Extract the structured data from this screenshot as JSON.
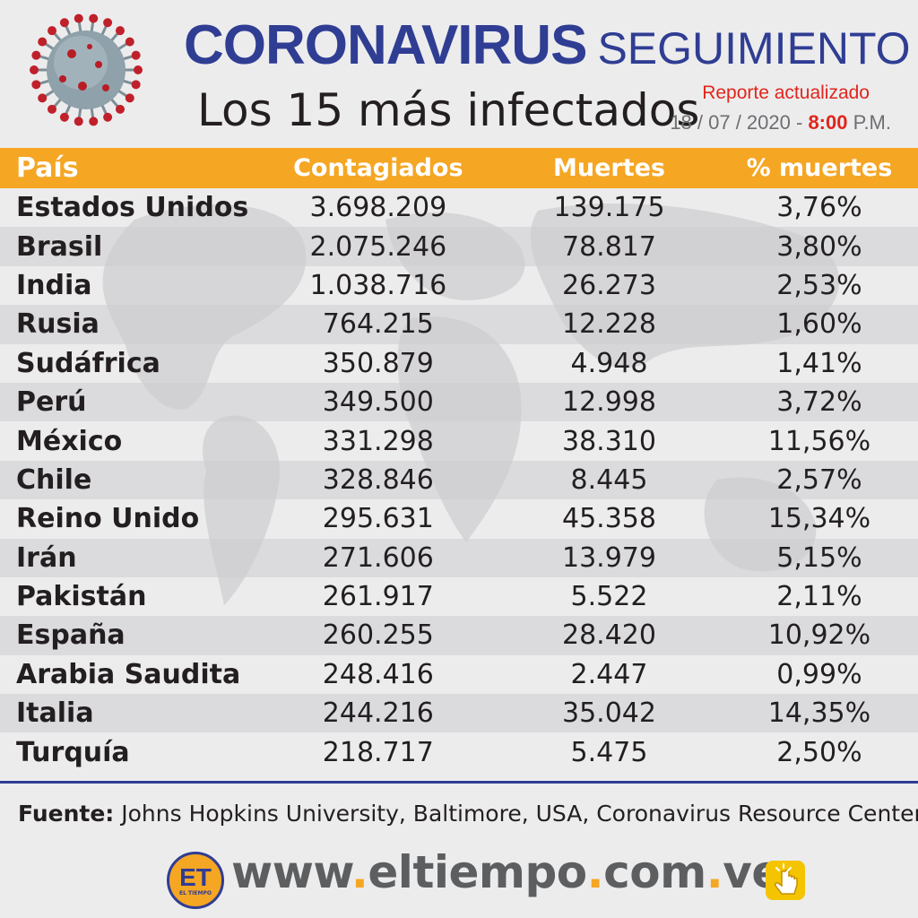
{
  "header": {
    "title_bold": "CORONAVIRUS",
    "title_light": "SEGUIMIENTO",
    "subtitle": "Los 15 más infectados",
    "report_label": "Reporte actualizado",
    "date": "18 / 07 / 2020 -",
    "time": "8:00",
    "ampm": "P.M."
  },
  "chart_data": {
    "type": "table",
    "columns": [
      "País",
      "Contagiados",
      "Muertes",
      "% muertes"
    ],
    "rows": [
      [
        "Estados Unidos",
        "3.698.209",
        "139.175",
        "3,76%"
      ],
      [
        "Brasil",
        "2.075.246",
        "78.817",
        "3,80%"
      ],
      [
        "India",
        "1.038.716",
        "26.273",
        "2,53%"
      ],
      [
        "Rusia",
        "764.215",
        "12.228",
        "1,60%"
      ],
      [
        "Sudáfrica",
        "350.879",
        "4.948",
        "1,41%"
      ],
      [
        "Perú",
        "349.500",
        "12.998",
        "3,72%"
      ],
      [
        "México",
        "331.298",
        "38.310",
        "11,56%"
      ],
      [
        "Chile",
        "328.846",
        "8.445",
        "2,57%"
      ],
      [
        "Reino Unido",
        "295.631",
        "45.358",
        "15,34%"
      ],
      [
        "Irán",
        "271.606",
        "13.979",
        "5,15%"
      ],
      [
        "Pakistán",
        "261.917",
        "5.522",
        "2,11%"
      ],
      [
        "España",
        "260.255",
        "28.420",
        "10,92%"
      ],
      [
        "Arabia Saudita",
        "248.416",
        "2.447",
        "0,99%"
      ],
      [
        "Italia",
        "244.216",
        "35.042",
        "14,35%"
      ],
      [
        "Turquía",
        "218.717",
        "5.475",
        "2,50%"
      ]
    ]
  },
  "footer": {
    "source_label": "Fuente:",
    "source_text": "Johns Hopkins University, Baltimore, USA, Coronavirus Resource Center",
    "logo_text": "ET",
    "logo_small": "EL TIEMPO",
    "url_parts": [
      "www",
      ".",
      "eltiempo",
      ".",
      "com",
      ".",
      "ve"
    ]
  },
  "colors": {
    "brand_blue": "#2f3d93",
    "header_orange": "#f5a623",
    "accent_red": "#e1251b"
  },
  "icons": {
    "virus": "coronavirus-illustration",
    "click": "hand-click-icon"
  }
}
